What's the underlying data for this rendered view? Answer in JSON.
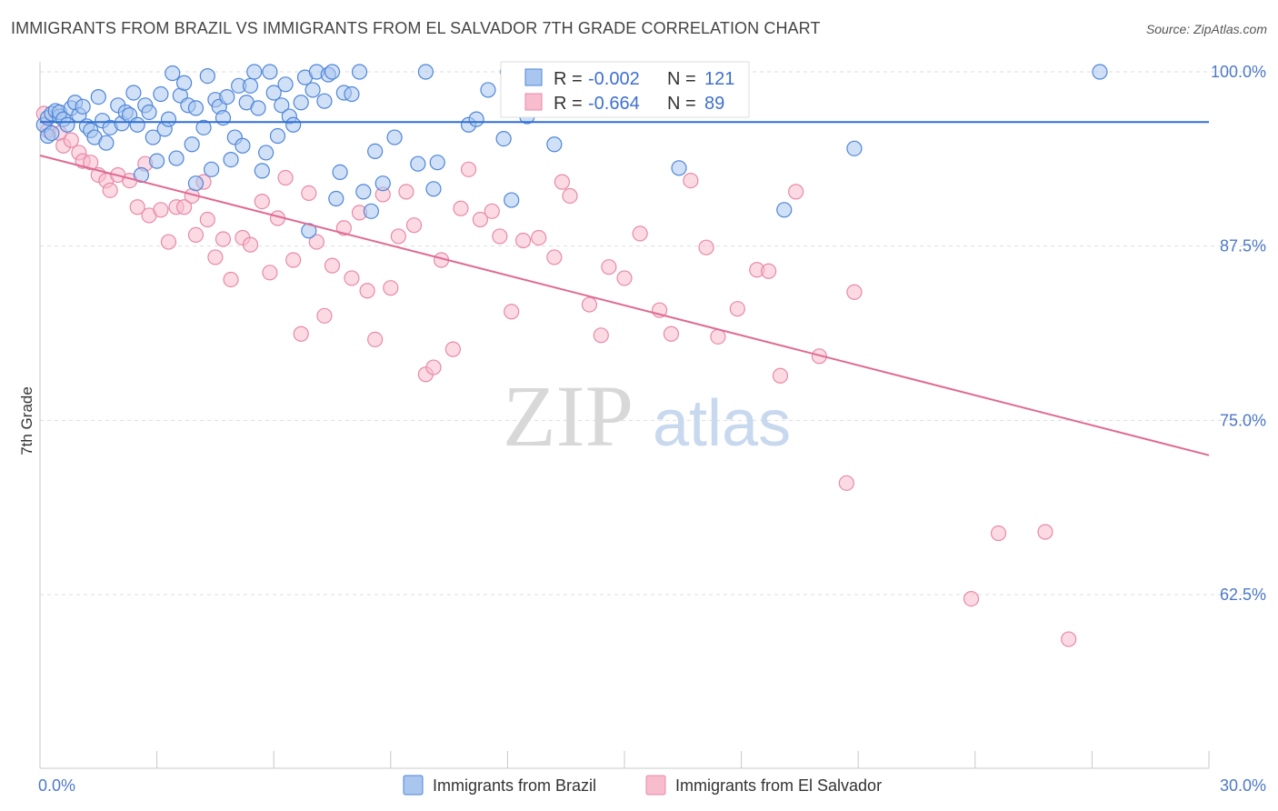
{
  "title": "IMMIGRANTS FROM BRAZIL VS IMMIGRANTS FROM EL SALVADOR 7TH GRADE CORRELATION CHART",
  "source": "Source: ZipAtlas.com",
  "watermark": {
    "zip": "ZIP",
    "atlas": "atlas"
  },
  "colors": {
    "brazil_fill": "#a9c6ef",
    "brazil_stroke": "#4f86d9",
    "brazil_line": "#2f6fd3",
    "elsalvador_fill": "#f7bccd",
    "elsalvador_stroke": "#e88aa8",
    "elsalvador_line": "#e06a93",
    "tick_text": "#4d79c7",
    "grid": "#dddddd"
  },
  "stats": {
    "r_label": "R =",
    "n_label": "N =",
    "brazil": {
      "r": "-0.002",
      "n": "121"
    },
    "elsalvador": {
      "r": "-0.664",
      "n": "89"
    }
  },
  "chart_data": {
    "type": "scatter",
    "title": "IMMIGRANTS FROM BRAZIL VS IMMIGRANTS FROM EL SALVADOR 7TH GRADE CORRELATION CHART",
    "xlabel": "",
    "ylabel": "7th Grade",
    "xlim": [
      0,
      30
    ],
    "ylim": [
      50,
      100
    ],
    "x_tick_labels": [
      {
        "value": 0,
        "label": "0.0%"
      },
      {
        "value": 30,
        "label": "30.0%"
      }
    ],
    "y_tick_labels": [
      {
        "value": 100,
        "label": "100.0%"
      },
      {
        "value": 87.5,
        "label": "87.5%"
      },
      {
        "value": 75,
        "label": "75.0%"
      },
      {
        "value": 62.5,
        "label": "62.5%"
      }
    ],
    "grid": true,
    "legend_position": "bottom",
    "series": [
      {
        "name": "Immigrants from Brazil",
        "trend": {
          "x": [
            0,
            30
          ],
          "y": [
            96.4,
            96.4
          ]
        },
        "points": [
          [
            0.1,
            96.2
          ],
          [
            0.2,
            95.4
          ],
          [
            0.2,
            96.7
          ],
          [
            0.3,
            97.0
          ],
          [
            0.3,
            95.6
          ],
          [
            0.4,
            97.2
          ],
          [
            0.5,
            96.8
          ],
          [
            0.5,
            97.1
          ],
          [
            0.6,
            96.6
          ],
          [
            0.7,
            96.2
          ],
          [
            0.8,
            97.4
          ],
          [
            0.9,
            97.8
          ],
          [
            1.0,
            96.9
          ],
          [
            1.1,
            97.5
          ],
          [
            1.2,
            96.1
          ],
          [
            1.3,
            95.8
          ],
          [
            1.4,
            95.3
          ],
          [
            1.5,
            98.2
          ],
          [
            1.6,
            96.5
          ],
          [
            1.7,
            94.9
          ],
          [
            1.8,
            96.0
          ],
          [
            2.0,
            97.6
          ],
          [
            2.1,
            96.3
          ],
          [
            2.2,
            97.1
          ],
          [
            2.3,
            96.9
          ],
          [
            2.4,
            98.5
          ],
          [
            2.5,
            96.2
          ],
          [
            2.6,
            92.6
          ],
          [
            2.7,
            97.6
          ],
          [
            2.8,
            97.1
          ],
          [
            2.9,
            95.3
          ],
          [
            3.0,
            93.6
          ],
          [
            3.1,
            98.4
          ],
          [
            3.2,
            95.9
          ],
          [
            3.3,
            96.6
          ],
          [
            3.4,
            99.9
          ],
          [
            3.5,
            93.8
          ],
          [
            3.6,
            98.3
          ],
          [
            3.7,
            99.2
          ],
          [
            3.8,
            97.6
          ],
          [
            3.9,
            94.8
          ],
          [
            4.0,
            97.4
          ],
          [
            4.0,
            92.0
          ],
          [
            4.2,
            96.0
          ],
          [
            4.3,
            99.7
          ],
          [
            4.4,
            93.0
          ],
          [
            4.5,
            98.0
          ],
          [
            4.6,
            97.5
          ],
          [
            4.7,
            96.7
          ],
          [
            4.8,
            98.2
          ],
          [
            4.9,
            93.7
          ],
          [
            5.0,
            95.3
          ],
          [
            5.1,
            99.0
          ],
          [
            5.2,
            94.7
          ],
          [
            5.3,
            97.8
          ],
          [
            5.4,
            99.0
          ],
          [
            5.5,
            100.0
          ],
          [
            5.6,
            97.4
          ],
          [
            5.7,
            92.9
          ],
          [
            5.8,
            94.2
          ],
          [
            5.9,
            100.0
          ],
          [
            6.0,
            98.5
          ],
          [
            6.1,
            95.4
          ],
          [
            6.2,
            97.6
          ],
          [
            6.3,
            99.1
          ],
          [
            6.4,
            96.8
          ],
          [
            6.5,
            96.2
          ],
          [
            6.7,
            97.8
          ],
          [
            6.8,
            99.6
          ],
          [
            6.9,
            88.6
          ],
          [
            7.0,
            98.7
          ],
          [
            7.1,
            100.0
          ],
          [
            7.3,
            97.9
          ],
          [
            7.4,
            99.8
          ],
          [
            7.5,
            100.0
          ],
          [
            7.6,
            90.9
          ],
          [
            7.7,
            92.8
          ],
          [
            7.8,
            98.5
          ],
          [
            8.0,
            98.4
          ],
          [
            8.2,
            100.0
          ],
          [
            8.3,
            91.4
          ],
          [
            8.5,
            90.0
          ],
          [
            8.6,
            94.3
          ],
          [
            8.8,
            92.0
          ],
          [
            9.1,
            95.3
          ],
          [
            9.7,
            93.4
          ],
          [
            9.9,
            100.0
          ],
          [
            10.1,
            91.6
          ],
          [
            10.2,
            93.5
          ],
          [
            11.0,
            96.2
          ],
          [
            11.2,
            96.6
          ],
          [
            11.5,
            98.7
          ],
          [
            11.9,
            95.2
          ],
          [
            12.0,
            100.0
          ],
          [
            12.1,
            90.8
          ],
          [
            12.5,
            96.8
          ],
          [
            13.2,
            94.8
          ],
          [
            13.9,
            99.9
          ],
          [
            16.4,
            93.1
          ],
          [
            19.1,
            90.1
          ],
          [
            20.9,
            94.5
          ],
          [
            27.2,
            100.0
          ]
        ]
      },
      {
        "name": "Immigrants from El Salvador",
        "trend": {
          "x": [
            0,
            30
          ],
          "y": [
            94.0,
            72.5
          ]
        },
        "points": [
          [
            0.1,
            97.0
          ],
          [
            0.2,
            95.8
          ],
          [
            0.5,
            95.6
          ],
          [
            0.6,
            94.7
          ],
          [
            0.8,
            95.1
          ],
          [
            1.0,
            94.2
          ],
          [
            1.1,
            93.6
          ],
          [
            1.3,
            93.5
          ],
          [
            1.5,
            92.6
          ],
          [
            1.7,
            92.2
          ],
          [
            1.8,
            91.5
          ],
          [
            2.0,
            92.6
          ],
          [
            2.3,
            92.2
          ],
          [
            2.5,
            90.3
          ],
          [
            2.7,
            93.4
          ],
          [
            2.8,
            89.7
          ],
          [
            3.1,
            90.1
          ],
          [
            3.3,
            87.8
          ],
          [
            3.5,
            90.3
          ],
          [
            3.7,
            90.3
          ],
          [
            3.9,
            91.1
          ],
          [
            4.0,
            88.3
          ],
          [
            4.2,
            92.1
          ],
          [
            4.3,
            89.4
          ],
          [
            4.5,
            86.7
          ],
          [
            4.7,
            88.0
          ],
          [
            4.9,
            85.1
          ],
          [
            5.2,
            88.1
          ],
          [
            5.4,
            87.6
          ],
          [
            5.7,
            90.7
          ],
          [
            5.9,
            85.6
          ],
          [
            6.1,
            89.5
          ],
          [
            6.3,
            92.4
          ],
          [
            6.5,
            86.5
          ],
          [
            6.7,
            81.2
          ],
          [
            6.9,
            91.3
          ],
          [
            7.1,
            87.8
          ],
          [
            7.3,
            82.5
          ],
          [
            7.5,
            86.1
          ],
          [
            7.8,
            88.8
          ],
          [
            8.0,
            85.2
          ],
          [
            8.2,
            89.9
          ],
          [
            8.4,
            84.3
          ],
          [
            8.6,
            80.8
          ],
          [
            8.8,
            91.2
          ],
          [
            9.0,
            84.5
          ],
          [
            9.2,
            88.2
          ],
          [
            9.4,
            91.4
          ],
          [
            9.6,
            89.0
          ],
          [
            9.9,
            78.3
          ],
          [
            10.1,
            78.8
          ],
          [
            10.3,
            86.5
          ],
          [
            10.6,
            80.1
          ],
          [
            10.8,
            90.2
          ],
          [
            11.0,
            93.0
          ],
          [
            11.3,
            89.4
          ],
          [
            11.6,
            90.0
          ],
          [
            11.8,
            88.2
          ],
          [
            12.1,
            82.8
          ],
          [
            12.4,
            87.9
          ],
          [
            12.8,
            88.1
          ],
          [
            13.2,
            86.7
          ],
          [
            13.4,
            92.1
          ],
          [
            13.6,
            91.1
          ],
          [
            14.1,
            83.3
          ],
          [
            14.4,
            81.1
          ],
          [
            14.6,
            86.0
          ],
          [
            15.0,
            85.2
          ],
          [
            15.4,
            88.4
          ],
          [
            15.9,
            82.9
          ],
          [
            16.2,
            81.2
          ],
          [
            16.7,
            92.2
          ],
          [
            17.1,
            87.4
          ],
          [
            17.4,
            81.0
          ],
          [
            17.9,
            83.0
          ],
          [
            18.4,
            85.8
          ],
          [
            18.7,
            85.7
          ],
          [
            19.0,
            78.2
          ],
          [
            19.4,
            91.4
          ],
          [
            20.0,
            79.6
          ],
          [
            20.9,
            84.2
          ],
          [
            20.7,
            70.5
          ],
          [
            23.9,
            62.2
          ],
          [
            24.6,
            66.9
          ],
          [
            25.8,
            67.0
          ],
          [
            26.4,
            59.3
          ]
        ]
      }
    ]
  },
  "legend": {
    "brazil_label": "Immigrants from Brazil",
    "elsalvador_label": "Immigrants from El Salvador"
  }
}
